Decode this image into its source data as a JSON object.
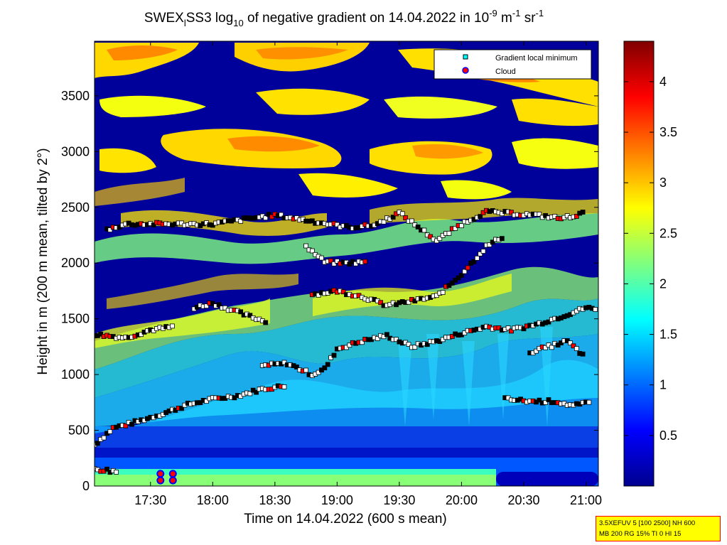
{
  "chart_data": {
    "type": "heatmap",
    "title": {
      "prefix": "SWEX",
      "sub": "l",
      "name": "SS3 log",
      "log_base": "10",
      "middle": " of negative gradient on 14.04.2022 in 10",
      "exp1": "-9",
      "unit1": " m",
      "exp2": "-1",
      "unit2": " sr",
      "exp3": "-1"
    },
    "xlabel": "Time on 14.04.2022 (600 s mean)",
    "ylabel": "Height in m (200 m mean, tilted by 2°)",
    "x_ticks": [
      {
        "label": "17:30",
        "hour": 17.5
      },
      {
        "label": "18:00",
        "hour": 18.0
      },
      {
        "label": "18:30",
        "hour": 18.5
      },
      {
        "label": "19:00",
        "hour": 19.0
      },
      {
        "label": "19:30",
        "hour": 19.5
      },
      {
        "label": "20:00",
        "hour": 20.0
      },
      {
        "label": "20:30",
        "hour": 20.5
      },
      {
        "label": "21:00",
        "hour": 21.0
      }
    ],
    "y_ticks": [
      0,
      500,
      1000,
      1500,
      2000,
      2500,
      3000,
      3500
    ],
    "xlim": [
      17.05,
      21.1
    ],
    "ylim": [
      0,
      3990
    ],
    "colorbar": {
      "ticks": [
        "0.5",
        "1",
        "1.5",
        "2",
        "2.5",
        "3",
        "3.5",
        "4"
      ],
      "tick_values": [
        0.5,
        1,
        1.5,
        2,
        2.5,
        3,
        3.5,
        4
      ],
      "range": [
        0,
        4.4
      ],
      "colormap": "jet"
    },
    "legend": {
      "placement": "top-right",
      "entries": [
        {
          "label": "Gradient local minimum",
          "marker": "square",
          "color": "#00ffff"
        },
        {
          "label": "Cloud",
          "marker": "circle",
          "color": "#ff0000",
          "edge": "#0000ff"
        }
      ]
    },
    "gradient_minimum_layers": [
      {
        "name": "boundary-layer-top",
        "points": [
          [
            17.05,
            370
          ],
          [
            17.2,
            520
          ],
          [
            17.4,
            580
          ],
          [
            17.6,
            650
          ],
          [
            17.8,
            730
          ],
          [
            18.0,
            780
          ],
          [
            18.2,
            810
          ],
          [
            18.4,
            870
          ],
          [
            18.6,
            900
          ]
        ]
      },
      {
        "name": "layer-1300",
        "points": [
          [
            17.05,
            1360
          ],
          [
            17.3,
            1330
          ],
          [
            17.5,
            1400
          ],
          [
            17.7,
            1430
          ]
        ]
      },
      {
        "name": "layer-1100",
        "points": [
          [
            18.4,
            1080
          ],
          [
            18.6,
            1100
          ],
          [
            18.8,
            1000
          ],
          [
            18.9,
            1050
          ],
          [
            19.0,
            1230
          ],
          [
            19.2,
            1300
          ],
          [
            19.4,
            1350
          ],
          [
            19.6,
            1250
          ],
          [
            19.8,
            1300
          ],
          [
            20.0,
            1370
          ],
          [
            20.2,
            1430
          ],
          [
            20.4,
            1400
          ],
          [
            20.6,
            1450
          ],
          [
            20.8,
            1520
          ],
          [
            21.0,
            1600
          ],
          [
            21.1,
            1580
          ]
        ]
      },
      {
        "name": "layer-1600",
        "points": [
          [
            17.85,
            1600
          ],
          [
            18.0,
            1640
          ],
          [
            18.15,
            1580
          ],
          [
            18.3,
            1520
          ],
          [
            18.45,
            1470
          ]
        ]
      },
      {
        "name": "layer-1700",
        "points": [
          [
            18.8,
            1720
          ],
          [
            19.0,
            1750
          ],
          [
            19.2,
            1700
          ],
          [
            19.4,
            1620
          ],
          [
            19.6,
            1660
          ],
          [
            19.8,
            1700
          ],
          [
            20.0,
            1900
          ],
          [
            20.2,
            2150
          ],
          [
            20.35,
            2250
          ]
        ]
      },
      {
        "name": "layer-2000",
        "points": [
          [
            18.75,
            2150
          ],
          [
            18.9,
            2010
          ],
          [
            19.05,
            2000
          ],
          [
            19.25,
            2010
          ]
        ]
      },
      {
        "name": "layer-2300",
        "points": [
          [
            17.15,
            2300
          ],
          [
            17.3,
            2350
          ],
          [
            18.0,
            2350
          ],
          [
            18.3,
            2400
          ],
          [
            18.5,
            2430
          ],
          [
            19.1,
            2320
          ],
          [
            19.3,
            2340
          ],
          [
            19.5,
            2450
          ],
          [
            19.8,
            2200
          ],
          [
            20.0,
            2350
          ],
          [
            20.2,
            2460
          ],
          [
            20.6,
            2430
          ],
          [
            20.8,
            2400
          ],
          [
            21.0,
            2450
          ]
        ]
      },
      {
        "name": "layer-1250-late",
        "points": [
          [
            20.55,
            1200
          ],
          [
            20.7,
            1250
          ],
          [
            20.85,
            1300
          ],
          [
            21.0,
            1150
          ]
        ]
      },
      {
        "name": "layer-750-late",
        "points": [
          [
            20.35,
            780
          ],
          [
            20.55,
            760
          ],
          [
            20.75,
            760
          ],
          [
            20.9,
            720
          ],
          [
            21.05,
            750
          ]
        ]
      },
      {
        "name": "layer-150",
        "points": [
          [
            17.05,
            150
          ],
          [
            17.15,
            140
          ],
          [
            17.2,
            130
          ],
          [
            17.25,
            120
          ]
        ]
      }
    ],
    "cloud_points": [
      {
        "time": 17.58,
        "height": 110
      },
      {
        "time": 17.58,
        "height": 50
      },
      {
        "time": 17.68,
        "height": 110
      },
      {
        "time": 17.68,
        "height": 50
      }
    ]
  },
  "infobox": {
    "line1": "3.5XEFUV 5 [100 2500] NH 600",
    "line2": "MB 200 RG 15% TI 0 HI 15"
  }
}
